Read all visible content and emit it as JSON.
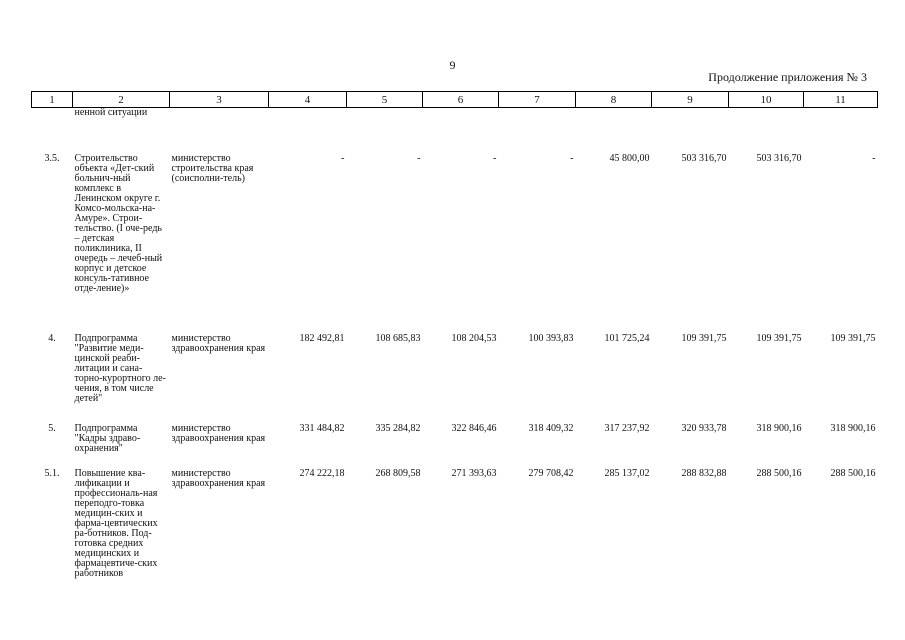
{
  "page_number": "9",
  "continuation": "Продолжение приложения № 3",
  "columns": [
    "1",
    "2",
    "3",
    "4",
    "5",
    "6",
    "7",
    "8",
    "9",
    "10",
    "11"
  ],
  "carryover": "ненной ситуации",
  "rows": [
    {
      "num": "3.5.",
      "name": "Строительство объекта «Дет-ский больнич-ный комплекс в Ленинском округе г. Комсо-мольска-на-Амуре». Строи-тельство. (I оче-редь – детская поликлиника, II очередь – лечеб-ный корпус и детское консуль-тативное отде-ление)»",
      "executor": "министерство строительства края (соисполни-тель)",
      "values": [
        "-",
        "-",
        "-",
        "-",
        "45 800,00",
        "503 316,70",
        "503 316,70",
        "-"
      ]
    },
    {
      "num": "4.",
      "name": "Подпрограмма \"Развитие меди-цинской реаби-литации и сана-торно-курортного ле-чения, в том числе детей\"",
      "executor": "министерство здравоохранения края",
      "values": [
        "182 492,81",
        "108 685,83",
        "108 204,53",
        "100 393,83",
        "101 725,24",
        "109 391,75",
        "109 391,75",
        "109 391,75"
      ]
    },
    {
      "num": "5.",
      "name": "Подпрограмма \"Кадры здраво-охранения\"",
      "executor": "министерство здравоохранения края",
      "values": [
        "331 484,82",
        "335 284,82",
        "322 846,46",
        "318 409,32",
        "317 237,92",
        "320 933,78",
        "318 900,16",
        "318 900,16"
      ]
    },
    {
      "num": "5.1.",
      "name": "Повышение ква-лификации и профессиональ-ная переподго-товка медицин-ских и фарма-цевтических ра-ботников. Под-готовка средних медицинских и фармацевтиче-ских работников",
      "executor": "министерство здравоохранения края",
      "values": [
        "274 222,18",
        "268 809,58",
        "271 393,63",
        "279 708,42",
        "285 137,02",
        "288 832,88",
        "288 500,16",
        "288 500,16"
      ]
    }
  ]
}
